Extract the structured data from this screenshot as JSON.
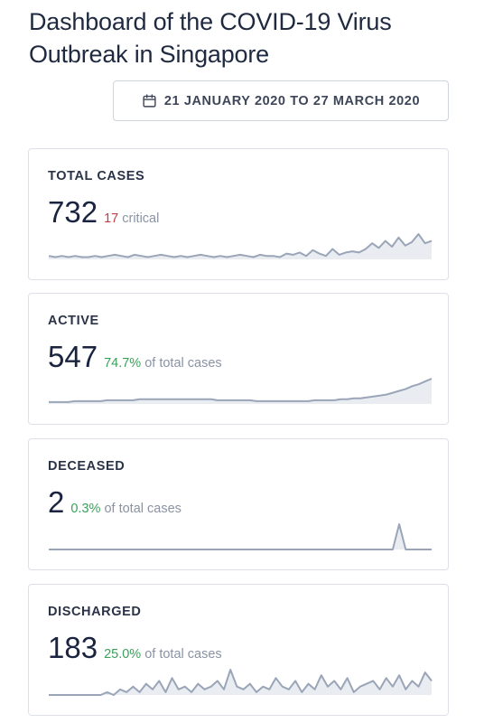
{
  "header": {
    "title": "Dashboard of the COVID-19 Virus Outbreak in Singapore",
    "date_range": "21 JANUARY 2020 TO 27 MARCH 2020",
    "date_icon": "calendar-icon"
  },
  "cards": [
    {
      "id": "total-cases",
      "label": "TOTAL CASES",
      "value": "732",
      "highlight": "17",
      "highlight_color": "#c23b4b",
      "suffix": "critical",
      "trend": [
        3,
        2,
        3,
        2,
        3,
        2,
        2,
        3,
        2,
        3,
        4,
        3,
        2,
        4,
        3,
        2,
        3,
        4,
        3,
        2,
        3,
        2,
        3,
        4,
        3,
        2,
        3,
        2,
        3,
        4,
        3,
        2,
        4,
        3,
        3,
        2,
        5,
        4,
        6,
        3,
        8,
        5,
        3,
        9,
        4,
        6,
        7,
        6,
        9,
        14,
        10,
        16,
        11,
        19,
        12,
        15,
        22,
        14,
        16
      ]
    },
    {
      "id": "active",
      "label": "ACTIVE",
      "value": "547",
      "highlight": "74.7%",
      "highlight_color": "#3aa15a",
      "suffix": "of total cases",
      "trend": [
        2,
        2,
        2,
        2,
        3,
        3,
        3,
        3,
        3,
        4,
        4,
        4,
        4,
        4,
        5,
        5,
        5,
        5,
        5,
        5,
        5,
        5,
        5,
        5,
        5,
        5,
        4,
        4,
        4,
        4,
        4,
        4,
        3,
        3,
        3,
        3,
        3,
        3,
        3,
        3,
        3,
        4,
        4,
        4,
        4,
        5,
        5,
        6,
        6,
        7,
        8,
        9,
        10,
        12,
        14,
        16,
        19,
        21,
        24,
        27
      ]
    },
    {
      "id": "deceased",
      "label": "DECEASED",
      "value": "2",
      "highlight": "0.3%",
      "highlight_color": "#3aa15a",
      "suffix": "of total cases",
      "trend": [
        0,
        0,
        0,
        0,
        0,
        0,
        0,
        0,
        0,
        0,
        0,
        0,
        0,
        0,
        0,
        0,
        0,
        0,
        0,
        0,
        0,
        0,
        0,
        0,
        0,
        0,
        0,
        0,
        0,
        0,
        0,
        0,
        0,
        0,
        0,
        0,
        0,
        0,
        0,
        0,
        0,
        0,
        0,
        0,
        0,
        0,
        0,
        0,
        0,
        0,
        0,
        0,
        0,
        0,
        1,
        0,
        0,
        0,
        0,
        0
      ]
    },
    {
      "id": "discharged",
      "label": "DISCHARGED",
      "value": "183",
      "highlight": "25.0%",
      "highlight_color": "#3aa15a",
      "suffix": "of total cases",
      "trend": [
        0,
        0,
        0,
        0,
        0,
        0,
        0,
        0,
        0,
        1,
        0,
        2,
        1,
        3,
        1,
        4,
        2,
        5,
        1,
        6,
        2,
        3,
        1,
        4,
        2,
        3,
        5,
        2,
        9,
        3,
        2,
        4,
        1,
        3,
        2,
        6,
        3,
        2,
        5,
        1,
        4,
        2,
        7,
        3,
        5,
        2,
        6,
        1,
        3,
        4,
        5,
        2,
        6,
        3,
        7,
        2,
        5,
        3,
        8,
        5
      ]
    }
  ]
}
